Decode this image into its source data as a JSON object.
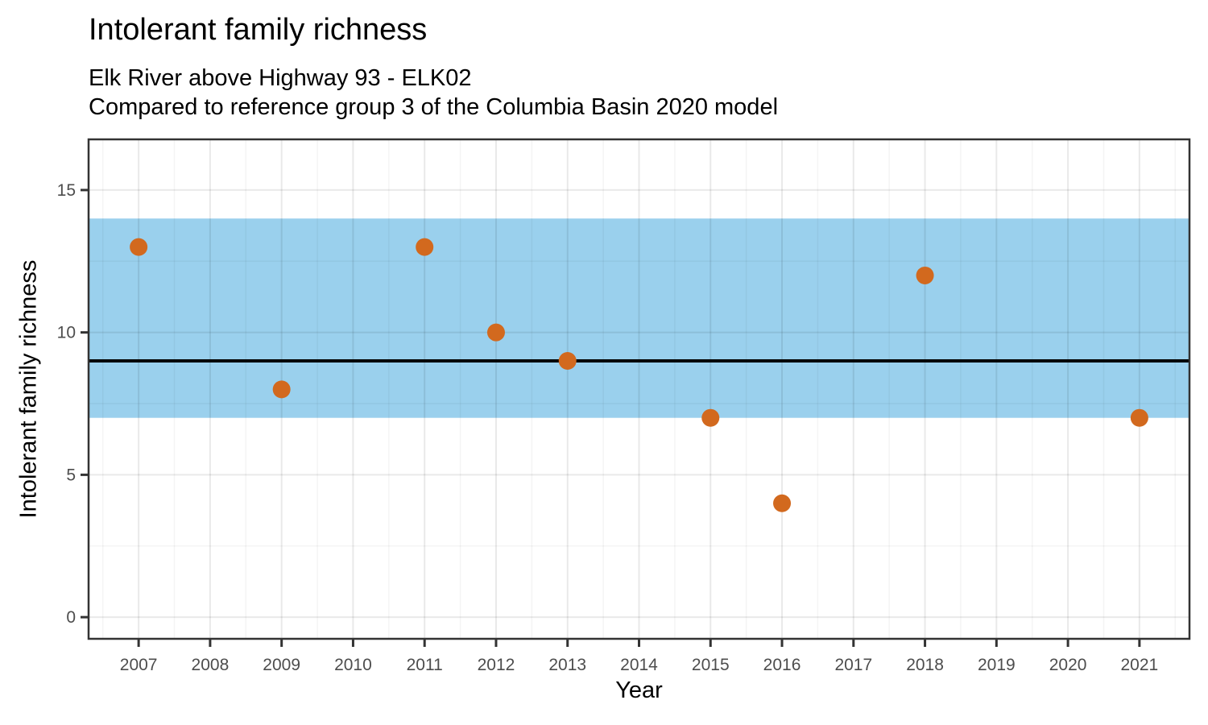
{
  "chart_data": {
    "type": "scatter",
    "title": "Intolerant family richness",
    "subtitle": [
      "Elk River above Highway 93 - ELK02",
      "Compared to reference group 3 of the Columbia Basin 2020 model"
    ],
    "xlabel": "Year",
    "ylabel": "Intolerant family richness",
    "points": [
      {
        "x": 2007,
        "y": 13
      },
      {
        "x": 2009,
        "y": 8
      },
      {
        "x": 2011,
        "y": 13
      },
      {
        "x": 2012,
        "y": 10
      },
      {
        "x": 2013,
        "y": 9
      },
      {
        "x": 2015,
        "y": 7
      },
      {
        "x": 2016,
        "y": 4
      },
      {
        "x": 2018,
        "y": 12
      },
      {
        "x": 2021,
        "y": 7
      }
    ],
    "point_color": "#D2691E",
    "reference_band": {
      "ymin": 7,
      "ymax": 14,
      "color": "#9AD0ED"
    },
    "reference_line": {
      "y": 9,
      "color": "#000000"
    },
    "x_ticks": [
      2007,
      2008,
      2009,
      2010,
      2011,
      2012,
      2013,
      2014,
      2015,
      2016,
      2017,
      2018,
      2019,
      2020,
      2021
    ],
    "y_ticks": [
      0,
      5,
      10,
      15
    ],
    "y_minor_ticks": [
      2.5,
      7.5,
      12.5
    ],
    "xlim": [
      2006.3,
      2021.7
    ],
    "ylim": [
      -0.76,
      16.78
    ],
    "grid": "on",
    "legend": "none",
    "panel_border_color": "#333333",
    "grid_major_color": "#EAEAEA",
    "grid_minor_color": "#F4F4F4",
    "tick_label_color": "#4D4D4D"
  }
}
